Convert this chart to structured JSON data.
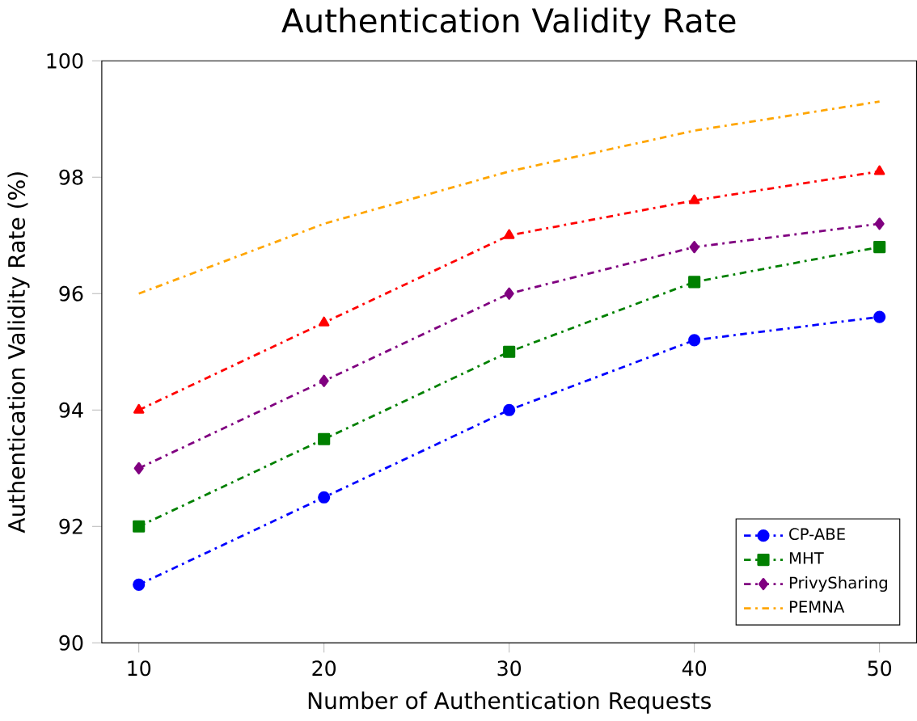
{
  "chart_data": {
    "type": "line",
    "title": "Authentication Validity Rate",
    "xlabel": "Number of Authentication Requests",
    "ylabel": "Authentication Validity Rate (%)",
    "x": [
      10,
      20,
      30,
      40,
      50
    ],
    "xlim": [
      8,
      52
    ],
    "xticks": [
      10,
      20,
      30,
      40,
      50
    ],
    "ylim": [
      90,
      100
    ],
    "yticks": [
      90,
      92,
      94,
      96,
      98,
      100
    ],
    "legend": "bottom right",
    "line_style": "dashed",
    "series": [
      {
        "name": "CP-ABE",
        "color": "#0000ff",
        "marker": "circle",
        "values": [
          91,
          92.5,
          94,
          95.2,
          95.6
        ]
      },
      {
        "name": "MHT",
        "color": "#008000",
        "marker": "square",
        "values": [
          92,
          93.5,
          95,
          96.2,
          96.8
        ]
      },
      {
        "name": "PrivySharing",
        "color": "#800080",
        "marker": "diamond",
        "values": [
          93,
          94.5,
          96,
          96.8,
          97.2
        ]
      },
      {
        "color": "#ff0000",
        "marker": "triangle",
        "values": [
          94,
          95.5,
          97,
          97.6,
          98.1
        ]
      },
      {
        "name": "PEMNA",
        "color": "#ffa500",
        "marker": "none",
        "values": [
          96,
          97.2,
          98.1,
          98.8,
          99.3
        ]
      }
    ]
  }
}
